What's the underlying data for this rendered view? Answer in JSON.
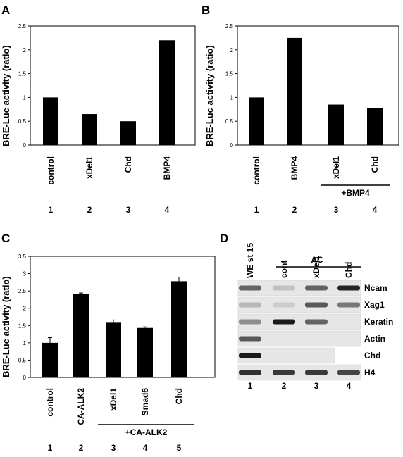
{
  "chart_data": [
    {
      "type": "bar",
      "panel": "A",
      "ylabel": "BRE-Luc activity (ratio)",
      "ylim": [
        0,
        2.5
      ],
      "yticks": [
        "0",
        "0.5",
        "1",
        "1.5",
        "2",
        "2.5"
      ],
      "categories": [
        "control",
        "xDel1",
        "Chd",
        "BMP4"
      ],
      "values": [
        1.0,
        0.65,
        0.5,
        2.2
      ],
      "lanes": [
        "1",
        "2",
        "3",
        "4"
      ],
      "group_label": "",
      "grid": false
    },
    {
      "type": "bar",
      "panel": "B",
      "ylabel": "BRE-Luc activity (ratio)",
      "ylim": [
        0,
        2.5
      ],
      "yticks": [
        "0",
        "0.5",
        "1",
        "1.5",
        "2",
        "2.5"
      ],
      "categories": [
        "control",
        "BMP4",
        "xDel1",
        "Chd"
      ],
      "values": [
        1.0,
        2.25,
        0.85,
        0.78
      ],
      "lanes": [
        "1",
        "2",
        "3",
        "4"
      ],
      "group_label": "+BMP4",
      "grid": false
    },
    {
      "type": "bar",
      "panel": "C",
      "ylabel": "BRE-Luc activity (ratio)",
      "ylim": [
        0,
        3.5
      ],
      "yticks": [
        "0",
        "0.5",
        "1",
        "1.5",
        "2",
        "2.5",
        "3",
        "3.5"
      ],
      "categories": [
        "control",
        "CA-ALK2",
        "xDel1",
        "Smad6",
        "Chd"
      ],
      "values": [
        1.0,
        2.42,
        1.6,
        1.43,
        2.78
      ],
      "errors": [
        0.15,
        0.02,
        0.06,
        0.03,
        0.12
      ],
      "lanes": [
        "1",
        "2",
        "3",
        "4",
        "5"
      ],
      "group_label": "+CA-ALK2",
      "grid": false
    }
  ],
  "gel": {
    "panel": "D",
    "lane_headers": [
      "WE st 15",
      "cont",
      "xDel1",
      "Chd"
    ],
    "group_label": "AC",
    "genes": [
      "Ncam",
      "Xag1",
      "Keratin",
      "Actin",
      "Chd",
      "H4"
    ],
    "lanes": [
      "1",
      "2",
      "3",
      "4"
    ],
    "band_intensity": [
      [
        0.6,
        0.15,
        0.6,
        0.9
      ],
      [
        0.2,
        0.1,
        0.65,
        0.5
      ],
      [
        0.4,
        0.95,
        0.6,
        0
      ],
      [
        0.65,
        0,
        0,
        0
      ],
      [
        0.95,
        0,
        0,
        0
      ],
      [
        0.85,
        0.8,
        0.8,
        0.75
      ]
    ]
  }
}
